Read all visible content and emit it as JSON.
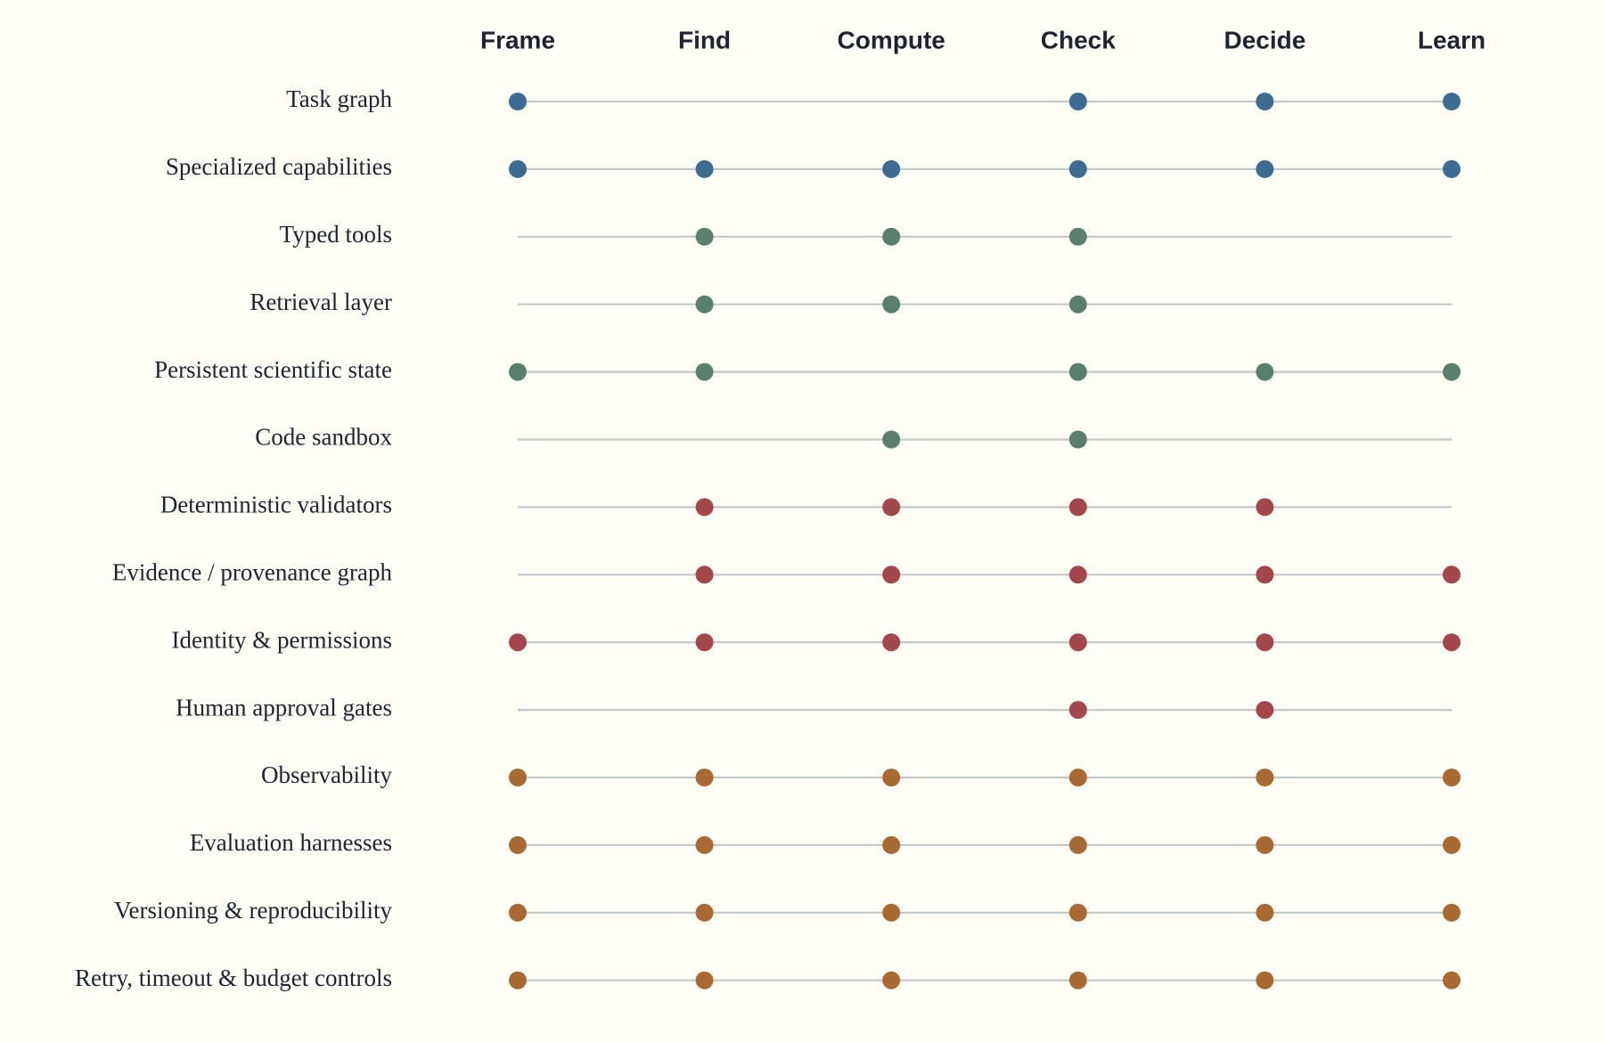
{
  "chart_data": {
    "type": "scatter",
    "title": "",
    "xlabel": "",
    "ylabel": "",
    "grid": false,
    "legend": "none",
    "stages": [
      "Frame",
      "Find",
      "Compute",
      "Check",
      "Decide",
      "Learn"
    ],
    "group_colors": {
      "orchestration": "#3d6b92",
      "knowledge": "#5a7f6c",
      "governance": "#a4474a",
      "operations": "#a86a32"
    },
    "rows": [
      {
        "label": "Task graph",
        "group": "orchestration",
        "stages": [
          "Frame",
          "Check",
          "Decide",
          "Learn"
        ]
      },
      {
        "label": "Specialized capabilities",
        "group": "orchestration",
        "stages": [
          "Frame",
          "Find",
          "Compute",
          "Check",
          "Decide",
          "Learn"
        ]
      },
      {
        "label": "Typed tools",
        "group": "knowledge",
        "stages": [
          "Find",
          "Compute",
          "Check"
        ]
      },
      {
        "label": "Retrieval layer",
        "group": "knowledge",
        "stages": [
          "Find",
          "Compute",
          "Check"
        ]
      },
      {
        "label": "Persistent scientific state",
        "group": "knowledge",
        "stages": [
          "Frame",
          "Find",
          "Check",
          "Decide",
          "Learn"
        ]
      },
      {
        "label": "Code sandbox",
        "group": "knowledge",
        "stages": [
          "Compute",
          "Check"
        ]
      },
      {
        "label": "Deterministic validators",
        "group": "governance",
        "stages": [
          "Find",
          "Compute",
          "Check",
          "Decide"
        ]
      },
      {
        "label": "Evidence / provenance graph",
        "group": "governance",
        "stages": [
          "Find",
          "Compute",
          "Check",
          "Decide",
          "Learn"
        ]
      },
      {
        "label": "Identity & permissions",
        "group": "governance",
        "stages": [
          "Frame",
          "Find",
          "Compute",
          "Check",
          "Decide",
          "Learn"
        ]
      },
      {
        "label": "Human approval gates",
        "group": "governance",
        "stages": [
          "Check",
          "Decide"
        ]
      },
      {
        "label": "Observability",
        "group": "operations",
        "stages": [
          "Frame",
          "Find",
          "Compute",
          "Check",
          "Decide",
          "Learn"
        ]
      },
      {
        "label": "Evaluation harnesses",
        "group": "operations",
        "stages": [
          "Frame",
          "Find",
          "Compute",
          "Check",
          "Decide",
          "Learn"
        ]
      },
      {
        "label": "Versioning & reproducibility",
        "group": "operations",
        "stages": [
          "Frame",
          "Find",
          "Compute",
          "Check",
          "Decide",
          "Learn"
        ]
      },
      {
        "label": "Retry, timeout & budget controls",
        "group": "operations",
        "stages": [
          "Frame",
          "Find",
          "Compute",
          "Check",
          "Decide",
          "Learn"
        ]
      }
    ]
  }
}
